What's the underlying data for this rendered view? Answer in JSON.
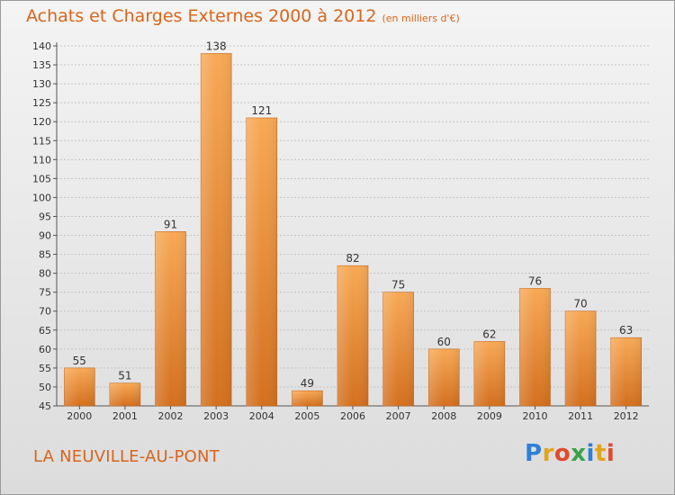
{
  "header": {
    "title": "Achats et Charges Externes 2000 à 2012",
    "unit": "(en milliers d'€)"
  },
  "footer": {
    "city": "LA NEUVILLE-AU-PONT",
    "logo": "Proxiti"
  },
  "colors": {
    "accent": "#d9651c",
    "bar_light": "#f5a552",
    "bar_dark": "#d46e1f"
  },
  "chart_data": {
    "type": "bar",
    "categories": [
      "2000",
      "2001",
      "2002",
      "2003",
      "2004",
      "2005",
      "2006",
      "2007",
      "2008",
      "2009",
      "2010",
      "2011",
      "2012"
    ],
    "values": [
      55,
      51,
      91,
      138,
      121,
      49,
      82,
      75,
      60,
      62,
      76,
      70,
      63
    ],
    "title": "Achats et Charges Externes 2000 à 2012",
    "xlabel": "",
    "ylabel": "",
    "ylim": [
      45,
      140
    ],
    "yticks": [
      45,
      50,
      55,
      60,
      65,
      70,
      75,
      80,
      85,
      90,
      95,
      100,
      105,
      110,
      115,
      120,
      125,
      130,
      135,
      140
    ],
    "grid": true,
    "data_labels": true
  }
}
